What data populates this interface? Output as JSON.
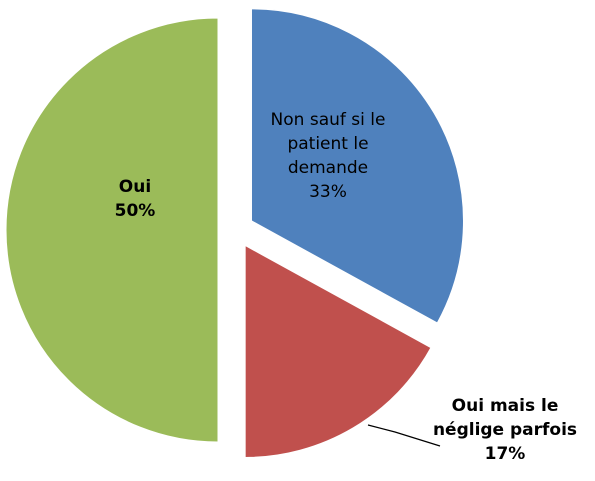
{
  "chart_data": {
    "type": "pie",
    "categories": [
      "Non sauf si le patient le demande",
      "Oui mais le néglige parfois",
      "Oui"
    ],
    "values": [
      33,
      17,
      50
    ],
    "value_labels": [
      "33%",
      "17%",
      "50%"
    ],
    "colors": [
      "#4f81bd",
      "#c0504d",
      "#9bbb59"
    ]
  }
}
